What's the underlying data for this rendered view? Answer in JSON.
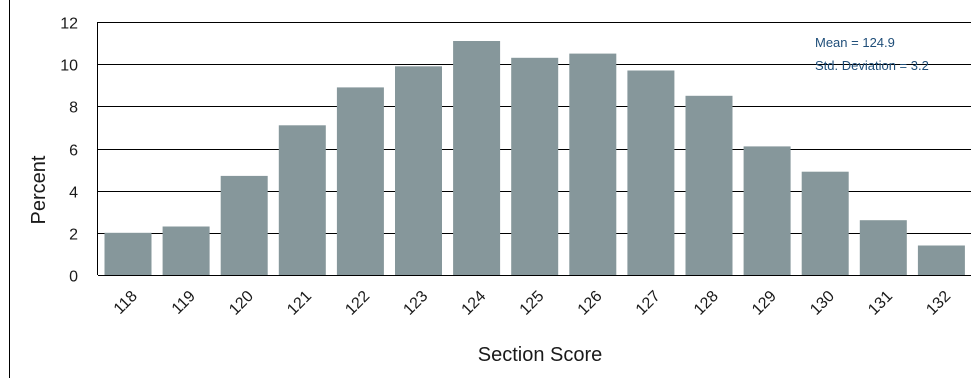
{
  "chart_data": {
    "type": "bar",
    "title": "",
    "xlabel": "Section Score",
    "ylabel": "Percent",
    "categories": [
      "118",
      "119",
      "120",
      "121",
      "122",
      "123",
      "124",
      "125",
      "126",
      "127",
      "128",
      "129",
      "130",
      "131",
      "132"
    ],
    "values": [
      2.0,
      2.3,
      4.7,
      7.1,
      8.9,
      9.9,
      11.1,
      10.3,
      10.5,
      9.7,
      8.5,
      6.1,
      4.9,
      2.6,
      1.4
    ],
    "ylim": [
      0,
      12
    ],
    "yticks": [
      "0",
      "2",
      "4",
      "6",
      "8",
      "10",
      "12"
    ],
    "grid": true,
    "legend": "none",
    "annotations": {
      "mean": "Mean = 124.9",
      "std": "Std. Deviation = 3.2"
    },
    "colors": {
      "bar": "#86979b",
      "grid": "#000000",
      "annotation_text": "#1f4e79"
    }
  }
}
